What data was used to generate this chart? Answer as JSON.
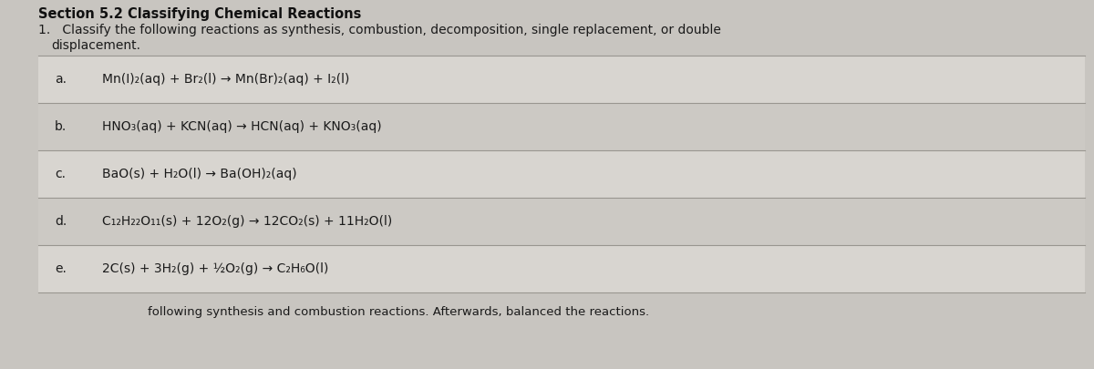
{
  "title": "Section 5.2 Classifying Chemical Reactions",
  "instruction_line1": "1.   Classify the following reactions as synthesis, combustion, decomposition, single replacement, or double",
  "instruction_line2": "     displacement.",
  "reactions": [
    {
      "label": "a.",
      "text": "Mn(I)₂(aq) + Br₂(l) → Mn(Br)₂(aq) + I₂(l)"
    },
    {
      "label": "b.",
      "text": "HNO₃(aq) + KCN(aq) → HCN(aq) + KNO₃(aq)"
    },
    {
      "label": "c.",
      "text": "BaO(s) + H₂O(l) → Ba(OH)₂(aq)"
    },
    {
      "label": "d.",
      "text": "C₁₂H₂₂O₁₁(s) + 12O₂(g) → 12CO₂(s) + 11H₂O(l)"
    },
    {
      "label": "e.",
      "text": "2C(s) + 3H₂(g) + ½O₂(g) → C₂H₆O(l)"
    }
  ],
  "footer": "following synthesis and combustion reactions. Afterwards, balanced the reactions.",
  "bg_color": "#c8c5c0",
  "row_color_even": "#d8d5d0",
  "row_color_odd": "#ccc9c4",
  "title_color": "#111111",
  "text_color": "#1a1a1a",
  "line_color": "#999690",
  "title_fontsize": 10.5,
  "text_fontsize": 10.0,
  "label_fontsize": 10.0
}
